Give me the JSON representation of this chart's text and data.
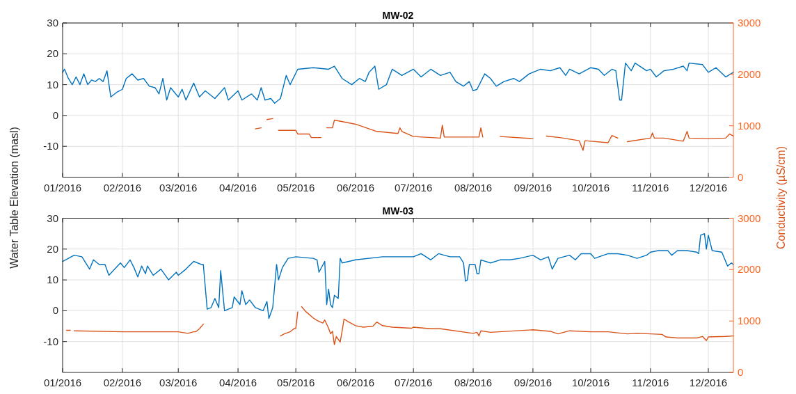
{
  "chart_data": [
    {
      "type": "line",
      "title": "MW-02",
      "ylabel": "Water Table Elevation (masl)",
      "y2label": "Conductivity (µS/cm)",
      "grid": true,
      "xlim": [
        "2016-01-01",
        "2016-12-14"
      ],
      "xticks": [
        {
          "value": "2016-01-01",
          "label": "01/2016"
        },
        {
          "value": "2016-02-01",
          "label": "02/2016"
        },
        {
          "value": "2016-03-01",
          "label": "03/2016"
        },
        {
          "value": "2016-04-01",
          "label": "04/2016"
        },
        {
          "value": "2016-05-01",
          "label": "05/2016"
        },
        {
          "value": "2016-06-01",
          "label": "06/2016"
        },
        {
          "value": "2016-07-01",
          "label": "07/2016"
        },
        {
          "value": "2016-08-01",
          "label": "08/2016"
        },
        {
          "value": "2016-09-01",
          "label": "09/2016"
        },
        {
          "value": "2016-10-01",
          "label": "10/2016"
        },
        {
          "value": "2016-11-01",
          "label": "11/2016"
        },
        {
          "value": "2016-12-01",
          "label": "12/2016"
        }
      ],
      "ylim": [
        -20,
        30
      ],
      "yticks": [
        -10,
        0,
        10,
        20,
        30
      ],
      "y2lim": [
        0,
        3000
      ],
      "y2ticks": [
        0,
        1000,
        2000,
        3000
      ],
      "series": [
        {
          "color": "#0072bd",
          "x": [
            "2016-01-01",
            "2016-01-02",
            "2016-01-04",
            "2016-01-06",
            "2016-01-08",
            "2016-01-10",
            "2016-01-12",
            "2016-01-14",
            "2016-01-16",
            "2016-01-18",
            "2016-01-20",
            "2016-01-22",
            "2016-01-24",
            "2016-01-26",
            "2016-01-29",
            "2016-02-01",
            "2016-02-03",
            "2016-02-06",
            "2016-02-09",
            "2016-02-12",
            "2016-02-15",
            "2016-02-18",
            "2016-02-20",
            "2016-02-22",
            "2016-02-24",
            "2016-02-26",
            "2016-03-01",
            "2016-03-03",
            "2016-03-05",
            "2016-03-09",
            "2016-03-12",
            "2016-03-15",
            "2016-03-20",
            "2016-03-25",
            "2016-03-27",
            "2016-04-01",
            "2016-04-03",
            "2016-04-08",
            "2016-04-11",
            "2016-04-13",
            "2016-04-15",
            "2016-04-18",
            "2016-04-20",
            "2016-04-23",
            "2016-04-26",
            "2016-04-28",
            "2016-05-02",
            "2016-05-10",
            "2016-05-18",
            "2016-05-21",
            "2016-05-25",
            "2016-05-30",
            "2016-06-03",
            "2016-06-06",
            "2016-06-08",
            "2016-06-11",
            "2016-06-13",
            "2016-06-17",
            "2016-06-20",
            "2016-06-25",
            "2016-07-01",
            "2016-07-05",
            "2016-07-10",
            "2016-07-15",
            "2016-07-20",
            "2016-07-23",
            "2016-07-27",
            "2016-07-30",
            "2016-08-01",
            "2016-08-03",
            "2016-08-07",
            "2016-08-10",
            "2016-08-13",
            "2016-08-17",
            "2016-08-22",
            "2016-08-25",
            "2016-08-30",
            "2016-09-05",
            "2016-09-10",
            "2016-09-15",
            "2016-09-18",
            "2016-09-20",
            "2016-09-25",
            "2016-10-01",
            "2016-10-05",
            "2016-10-08",
            "2016-10-12",
            "2016-10-14",
            "2016-10-16",
            "2016-10-17",
            "2016-10-19",
            "2016-10-22",
            "2016-10-24",
            "2016-10-30",
            "2016-11-01",
            "2016-11-04",
            "2016-11-08",
            "2016-11-13",
            "2016-11-18",
            "2016-11-20",
            "2016-11-21",
            "2016-11-28",
            "2016-12-01",
            "2016-12-05",
            "2016-12-10",
            "2016-12-14"
          ],
          "values": [
            14,
            15,
            12,
            10,
            12.5,
            10,
            13.5,
            10,
            11.5,
            11,
            12,
            11,
            14.5,
            6,
            7.5,
            8.5,
            12,
            13.5,
            11.5,
            12,
            9.5,
            9,
            7,
            12,
            5,
            9,
            6,
            8.5,
            5,
            10.5,
            6,
            8,
            5.5,
            9,
            5,
            8,
            5,
            7,
            5,
            9,
            5,
            5.5,
            4,
            5.5,
            13,
            10,
            15,
            15.5,
            15,
            16,
            12,
            10,
            12,
            11,
            14,
            16,
            8.5,
            10,
            15,
            13,
            15,
            12.5,
            15,
            13,
            14,
            11,
            9.5,
            11,
            8,
            8.5,
            13.5,
            12,
            9.5,
            11,
            12,
            11,
            13.5,
            15,
            14.5,
            15.5,
            13,
            15,
            13.5,
            15.5,
            15,
            13,
            15,
            14.5,
            5,
            5,
            17,
            14.5,
            17,
            14.5,
            15,
            12.5,
            14.5,
            15,
            16,
            14.5,
            17,
            16.5,
            14,
            15.5,
            12.5,
            14
          ]
        },
        {
          "color": "#d95319",
          "axis": "y2",
          "x": [
            "2016-04-10",
            "2016-04-13",
            "2016-04-14",
            "2016-04-16",
            "2016-04-19",
            "2016-04-20",
            "2016-04-22",
            "2016-05-01",
            "2016-05-02",
            "2016-05-08",
            "2016-05-09",
            "2016-05-14",
            "2016-05-15",
            "2016-05-17",
            "2016-05-20",
            "2016-05-21",
            "2016-06-01",
            "2016-06-12",
            "2016-06-23",
            "2016-06-24",
            "2016-06-25",
            "2016-07-01",
            "2016-07-15",
            "2016-07-16",
            "2016-07-17",
            "2016-08-01",
            "2016-08-04",
            "2016-08-05",
            "2016-08-06",
            "2016-08-10",
            "2016-08-15",
            "2016-09-01",
            "2016-09-05",
            "2016-09-08",
            "2016-09-15",
            "2016-09-25",
            "2016-09-27",
            "2016-09-28",
            "2016-10-10",
            "2016-10-12",
            "2016-10-15",
            "2016-10-16",
            "2016-10-20",
            "2016-11-01",
            "2016-11-02",
            "2016-11-03",
            "2016-11-08",
            "2016-11-18",
            "2016-11-20",
            "2016-11-21",
            "2016-12-01",
            "2016-12-10",
            "2016-12-12",
            "2016-12-14"
          ],
          "values": [
            940,
            960,
            null,
            1120,
            1140,
            null,
            910,
            910,
            840,
            840,
            770,
            770,
            null,
            960,
            960,
            1110,
            1030,
            890,
            850,
            960,
            890,
            790,
            760,
            1010,
            780,
            780,
            780,
            960,
            780,
            null,
            790,
            750,
            null,
            800,
            770,
            710,
            520,
            710,
            670,
            810,
            760,
            null,
            690,
            760,
            860,
            760,
            760,
            700,
            890,
            760,
            750,
            760,
            840,
            800
          ]
        }
      ]
    },
    {
      "type": "line",
      "title": "MW-03",
      "grid": true,
      "xlim": [
        "2016-01-01",
        "2016-12-14"
      ],
      "xticks": [
        {
          "value": "2016-01-01",
          "label": "01/2016"
        },
        {
          "value": "2016-02-01",
          "label": "02/2016"
        },
        {
          "value": "2016-03-01",
          "label": "03/2016"
        },
        {
          "value": "2016-04-01",
          "label": "04/2016"
        },
        {
          "value": "2016-05-01",
          "label": "05/2016"
        },
        {
          "value": "2016-06-01",
          "label": "06/2016"
        },
        {
          "value": "2016-07-01",
          "label": "07/2016"
        },
        {
          "value": "2016-08-01",
          "label": "08/2016"
        },
        {
          "value": "2016-09-01",
          "label": "09/2016"
        },
        {
          "value": "2016-10-01",
          "label": "10/2016"
        },
        {
          "value": "2016-11-01",
          "label": "11/2016"
        },
        {
          "value": "2016-12-01",
          "label": "12/2016"
        }
      ],
      "ylim": [
        -20,
        30
      ],
      "yticks": [
        -10,
        0,
        10,
        20,
        30
      ],
      "y2lim": [
        0,
        3000
      ],
      "y2ticks": [
        0,
        1000,
        2000,
        3000
      ],
      "series": [
        {
          "color": "#0072bd",
          "x": [
            "2016-01-01",
            "2016-01-04",
            "2016-01-07",
            "2016-01-11",
            "2016-01-15",
            "2016-01-17",
            "2016-01-20",
            "2016-01-23",
            "2016-01-25",
            "2016-01-28",
            "2016-01-31",
            "2016-02-02",
            "2016-02-05",
            "2016-02-07",
            "2016-02-09",
            "2016-02-11",
            "2016-02-13",
            "2016-02-14",
            "2016-02-17",
            "2016-02-21",
            "2016-02-25",
            "2016-02-29",
            "2016-03-01",
            "2016-03-05",
            "2016-03-09",
            "2016-03-13",
            "2016-03-14",
            "2016-03-16",
            "2016-03-18",
            "2016-03-20",
            "2016-03-22",
            "2016-03-23",
            "2016-03-25",
            "2016-03-29",
            "2016-03-30",
            "2016-04-02",
            "2016-04-03",
            "2016-04-05",
            "2016-04-07",
            "2016-04-10",
            "2016-04-14",
            "2016-04-16",
            "2016-04-17",
            "2016-04-19",
            "2016-04-21",
            "2016-04-22",
            "2016-04-24",
            "2016-04-27",
            "2016-05-01",
            "2016-05-10",
            "2016-05-12",
            "2016-05-13",
            "2016-05-16",
            "2016-05-17",
            "2016-05-18",
            "2016-05-19",
            "2016-05-20",
            "2016-05-21",
            "2016-05-23",
            "2016-05-24",
            "2016-05-25",
            "2016-06-01",
            "2016-06-15",
            "2016-06-25",
            "2016-07-01",
            "2016-07-05",
            "2016-07-10",
            "2016-07-14",
            "2016-07-20",
            "2016-07-25",
            "2016-07-27",
            "2016-07-28",
            "2016-07-29",
            "2016-07-30",
            "2016-08-02",
            "2016-08-03",
            "2016-08-04",
            "2016-08-05",
            "2016-08-10",
            "2016-08-15",
            "2016-08-20",
            "2016-08-25",
            "2016-09-01",
            "2016-09-05",
            "2016-09-09",
            "2016-09-11",
            "2016-09-14",
            "2016-09-20",
            "2016-09-23",
            "2016-09-26",
            "2016-10-01",
            "2016-10-03",
            "2016-10-10",
            "2016-10-15",
            "2016-10-20",
            "2016-10-25",
            "2016-10-30",
            "2016-11-01",
            "2016-11-05",
            "2016-11-10",
            "2016-11-12",
            "2016-11-15",
            "2016-11-20",
            "2016-11-25",
            "2016-11-26",
            "2016-11-27",
            "2016-11-29",
            "2016-11-30",
            "2016-12-01",
            "2016-12-03",
            "2016-12-08",
            "2016-12-11",
            "2016-12-13",
            "2016-12-14"
          ],
          "values": [
            16,
            17,
            18,
            17.5,
            13.5,
            16.5,
            15,
            15,
            11.5,
            13.5,
            15.5,
            14,
            16.5,
            14,
            11,
            14.5,
            12,
            14.5,
            11.5,
            13.5,
            10,
            12.5,
            11.5,
            13.5,
            16,
            15,
            15,
            0.5,
            1,
            4,
            1,
            13,
            0,
            1,
            4.5,
            2,
            6.5,
            2,
            3.5,
            1,
            0,
            3,
            -2.5,
            1,
            15,
            10,
            14,
            17,
            17.5,
            17,
            16.5,
            12.5,
            16,
            2,
            7,
            2,
            1,
            5,
            4,
            17,
            15.5,
            16.5,
            17.5,
            17.5,
            17.5,
            18.5,
            16.5,
            18.5,
            17.5,
            17.5,
            15.5,
            9.6,
            10,
            15,
            15,
            12,
            12,
            16.5,
            15.5,
            16.5,
            16.5,
            17,
            18,
            16.5,
            17.5,
            13.5,
            17,
            18,
            16.5,
            18.5,
            18.5,
            17,
            18.5,
            18.5,
            18,
            17,
            18,
            19,
            19.5,
            19.5,
            18,
            19.5,
            19.5,
            19,
            18.5,
            24.5,
            25,
            20,
            24.5,
            19.5,
            19,
            14.5,
            15.5,
            15
          ]
        },
        {
          "color": "#d95319",
          "axis": "y2",
          "x": [
            "2016-01-03",
            "2016-01-05",
            "2016-01-06",
            "2016-01-07",
            "2016-02-01",
            "2016-03-01",
            "2016-03-06",
            "2016-03-09",
            "2016-03-10",
            "2016-03-12",
            "2016-03-14",
            "2016-03-15",
            "2016-04-23",
            "2016-04-25",
            "2016-04-28",
            "2016-04-30",
            "2016-05-01",
            "2016-05-02",
            "2016-05-03",
            "2016-05-04",
            "2016-05-06",
            "2016-05-10",
            "2016-05-12",
            "2016-05-15",
            "2016-05-16",
            "2016-05-18",
            "2016-05-19",
            "2016-05-20",
            "2016-05-21",
            "2016-05-22",
            "2016-05-24",
            "2016-05-25",
            "2016-05-26",
            "2016-05-28",
            "2016-06-01",
            "2016-06-05",
            "2016-06-10",
            "2016-06-12",
            "2016-06-15",
            "2016-06-20",
            "2016-06-30",
            "2016-07-01",
            "2016-07-10",
            "2016-07-15",
            "2016-08-01",
            "2016-08-03",
            "2016-08-04",
            "2016-08-05",
            "2016-08-10",
            "2016-09-01",
            "2016-09-10",
            "2016-09-14",
            "2016-09-20",
            "2016-10-01",
            "2016-10-10",
            "2016-10-20",
            "2016-10-25",
            "2016-11-01",
            "2016-11-07",
            "2016-11-09",
            "2016-11-15",
            "2016-11-25",
            "2016-11-28",
            "2016-11-30",
            "2016-12-01",
            "2016-12-10",
            "2016-12-14"
          ],
          "values": [
            820,
            820,
            null,
            810,
            790,
            790,
            760,
            790,
            790,
            850,
            940,
            null,
            710,
            750,
            790,
            850,
            860,
            1180,
            null,
            1280,
            1190,
            1060,
            1010,
            960,
            1020,
            860,
            750,
            800,
            540,
            700,
            590,
            800,
            1040,
            990,
            910,
            880,
            900,
            980,
            910,
            880,
            860,
            880,
            850,
            850,
            760,
            780,
            710,
            810,
            780,
            830,
            800,
            750,
            810,
            790,
            790,
            750,
            760,
            750,
            740,
            690,
            670,
            670,
            700,
            620,
            690,
            700,
            710
          ]
        }
      ]
    }
  ]
}
